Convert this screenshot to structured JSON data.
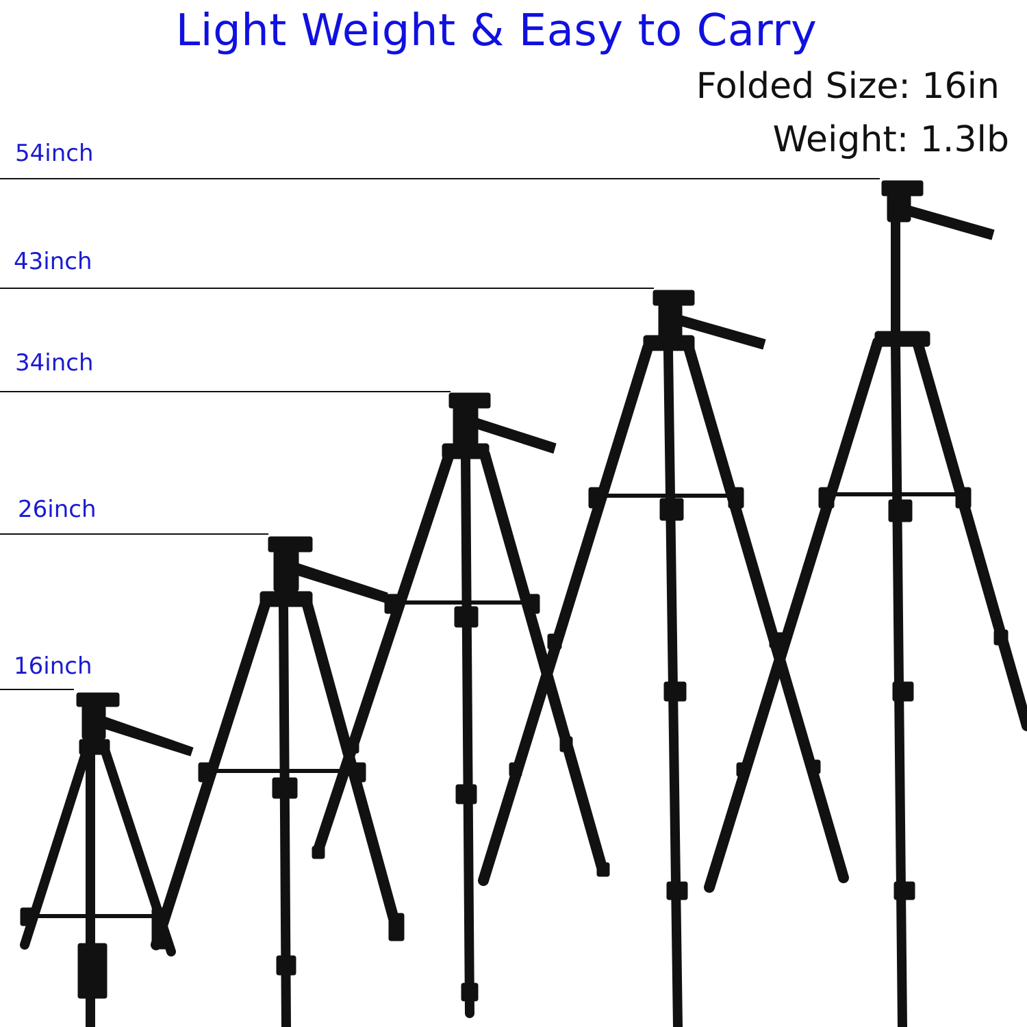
{
  "title": "Light Weight & Easy to Carry",
  "specs": {
    "folded_size": "Folded Size: 16in",
    "weight": "Weight: 1.3lb"
  },
  "heights": [
    {
      "label": "54inch"
    },
    {
      "label": "43inch"
    },
    {
      "label": "34inch"
    },
    {
      "label": "26inch"
    },
    {
      "label": "16inch"
    }
  ],
  "colors": {
    "title": "#1010e0",
    "height_labels": "#1a1ad0",
    "tripod": "#111111",
    "lines": "#111111"
  }
}
